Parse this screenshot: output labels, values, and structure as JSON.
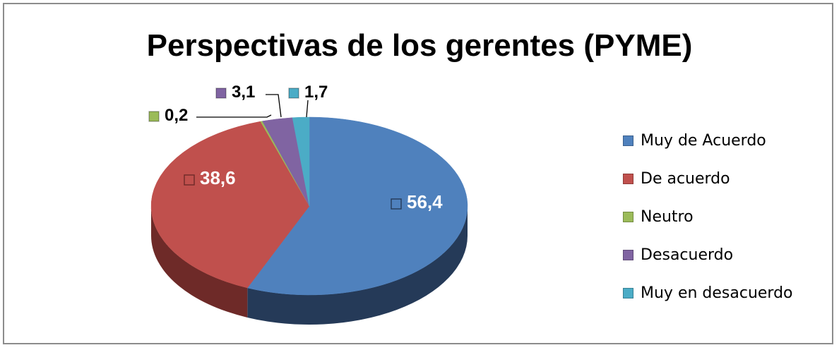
{
  "chart_data": {
    "type": "pie",
    "title": "Perspectivas de los gerentes (PYME)",
    "categories": [
      "Muy de Acuerdo",
      "De acuerdo",
      "Neutro",
      "Desacuerdo",
      "Muy en desacuerdo"
    ],
    "values": [
      56.4,
      38.6,
      0.2,
      3.1,
      1.7
    ],
    "data_labels": [
      "56,4",
      "38,6",
      "0,2",
      "3,1",
      "1,7"
    ],
    "colors": [
      "#4f81bd",
      "#c0504d",
      "#9bbb59",
      "#8064a2",
      "#4bacc6"
    ],
    "dark_colors": [
      "#253a58",
      "#6e2a28",
      "#5a6d33",
      "#4a3a60",
      "#2a6a7a"
    ],
    "legend_position": "right",
    "style": "3d-pie"
  }
}
